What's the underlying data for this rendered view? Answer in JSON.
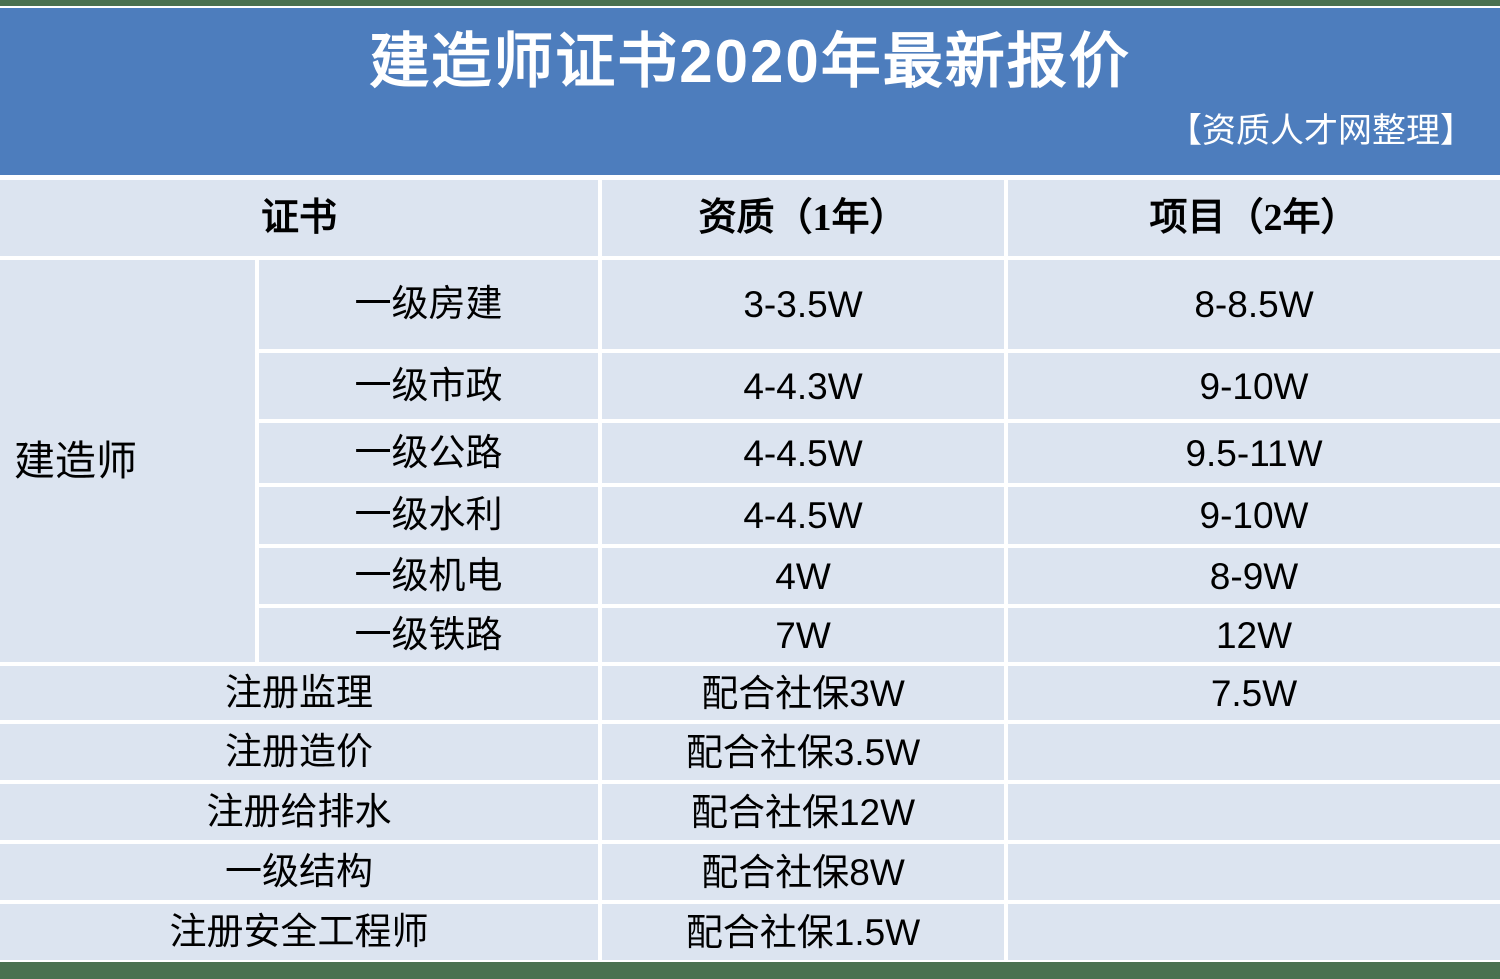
{
  "colors": {
    "banner_blue": "#4d7dbd",
    "cell_blue": "#dce4f0",
    "trim_green": "#4a7150",
    "title_text": "#ffffff",
    "body_text": "#000000"
  },
  "chart_data": {
    "type": "table",
    "title": "建造师证书2020年最新报价",
    "credit": "【资质人才网整理】",
    "header": {
      "certificate": "证书",
      "qualification": "资质（1年）",
      "project": "项目（2年）"
    },
    "group": {
      "label": "建造师",
      "rows": [
        [
          "一级房建",
          "3-3.5W",
          "8-8.5W"
        ],
        [
          "一级市政",
          "4-4.3W",
          "9-10W"
        ],
        [
          "一级公路",
          "4-4.5W",
          "9.5-11W"
        ],
        [
          "一级水利",
          "4-4.5W",
          "9-10W"
        ],
        [
          "一级机电",
          "4W",
          "8-9W"
        ],
        [
          "一级铁路",
          "7W",
          "12W"
        ]
      ]
    },
    "singles": [
      [
        "注册监理",
        "配合社保3W",
        "7.5W"
      ],
      [
        "注册造价",
        "配合社保3.5W",
        ""
      ],
      [
        "注册给排水",
        "配合社保12W",
        ""
      ],
      [
        "一级结构",
        "配合社保8W",
        ""
      ],
      [
        "注册安全工程师",
        "配合社保1.5W",
        ""
      ]
    ]
  }
}
